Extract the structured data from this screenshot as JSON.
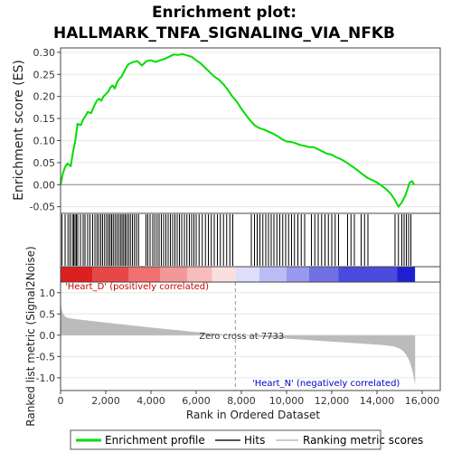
{
  "chart_data": {
    "type": "line",
    "title_line1": "Enrichment plot:",
    "title_line2": "HALLMARK_TNFA_SIGNALING_VIA_NFKB",
    "es_ylabel": "Enrichment score (ES)",
    "metric_ylabel": "Ranked list metric (Signal2Noise)",
    "xlabel": "Rank in Ordered Dataset",
    "xlim": [
      0,
      16800
    ],
    "x_ticks": [
      0,
      2000,
      4000,
      6000,
      8000,
      10000,
      12000,
      14000,
      16000
    ],
    "x_tick_labels": [
      "0",
      "2,000",
      "4,000",
      "6,000",
      "8,000",
      "10,000",
      "12,000",
      "14,000",
      "16,000"
    ],
    "es_ylim": [
      -0.065,
      0.31
    ],
    "es_yticks": [
      -0.05,
      0.0,
      0.05,
      0.1,
      0.15,
      0.2,
      0.25,
      0.3
    ],
    "es_ytick_labels": [
      "-0.05",
      "0.00",
      "0.05",
      "0.10",
      "0.15",
      "0.20",
      "0.25",
      "0.30"
    ],
    "metric_ylim": [
      -1.3,
      1.25
    ],
    "metric_yticks": [
      -1.0,
      -0.5,
      0.0,
      0.5,
      1.0
    ],
    "metric_ytick_labels": [
      "-1.0",
      "-0.5",
      "0.0",
      "0.5",
      "1.0"
    ],
    "n_genes": 15690,
    "zero_cross_rank": 7733,
    "zero_cross_label": "Zero cross at 7733",
    "pos_label": "'Heart_D' (positively correlated)",
    "neg_label": "'Heart_N' (negatively correlated)",
    "es_curve": {
      "x": [
        0,
        100,
        200,
        300,
        450,
        550,
        650,
        750,
        900,
        1000,
        1100,
        1200,
        1350,
        1500,
        1600,
        1700,
        1800,
        1900,
        2000,
        2100,
        2200,
        2300,
        2400,
        2500,
        2600,
        2700,
        2800,
        2900,
        3000,
        3200,
        3400,
        3600,
        3800,
        4000,
        4200,
        4400,
        4600,
        4800,
        5000,
        5200,
        5400,
        5600,
        5800,
        6000,
        6200,
        6400,
        6600,
        6800,
        7000,
        7200,
        7400,
        7600,
        7800,
        8000,
        8200,
        8400,
        8600,
        8800,
        9000,
        9200,
        9400,
        9600,
        9800,
        10000,
        10200,
        10400,
        10600,
        10800,
        11000,
        11200,
        11400,
        11600,
        11800,
        12000,
        12200,
        12400,
        12600,
        12800,
        13000,
        13200,
        13400,
        13600,
        13800,
        14000,
        14200,
        14400,
        14600,
        14800,
        14950,
        15100,
        15250,
        15350,
        15450,
        15550,
        15650
      ],
      "y": [
        0.0,
        0.025,
        0.04,
        0.048,
        0.042,
        0.075,
        0.1,
        0.138,
        0.135,
        0.148,
        0.155,
        0.165,
        0.162,
        0.18,
        0.19,
        0.195,
        0.19,
        0.2,
        0.205,
        0.21,
        0.22,
        0.225,
        0.218,
        0.232,
        0.24,
        0.245,
        0.255,
        0.265,
        0.273,
        0.278,
        0.28,
        0.27,
        0.28,
        0.282,
        0.278,
        0.282,
        0.285,
        0.29,
        0.295,
        0.294,
        0.296,
        0.293,
        0.29,
        0.282,
        0.275,
        0.265,
        0.255,
        0.245,
        0.238,
        0.228,
        0.215,
        0.2,
        0.188,
        0.172,
        0.158,
        0.145,
        0.134,
        0.128,
        0.125,
        0.12,
        0.116,
        0.11,
        0.103,
        0.098,
        0.097,
        0.094,
        0.09,
        0.088,
        0.085,
        0.085,
        0.08,
        0.075,
        0.07,
        0.068,
        0.062,
        0.058,
        0.052,
        0.045,
        0.038,
        0.03,
        0.022,
        0.015,
        0.01,
        0.005,
        -0.002,
        -0.01,
        -0.02,
        -0.035,
        -0.05,
        -0.04,
        -0.025,
        -0.01,
        0.005,
        0.008,
        0.0
      ]
    },
    "hits": [
      60,
      200,
      330,
      420,
      520,
      580,
      640,
      700,
      760,
      880,
      1000,
      1080,
      1200,
      1300,
      1420,
      1520,
      1610,
      1690,
      1780,
      1860,
      1950,
      2040,
      2120,
      2190,
      2260,
      2330,
      2410,
      2490,
      2570,
      2650,
      2720,
      2790,
      2860,
      2930,
      3010,
      3090,
      3180,
      3270,
      3360,
      3450,
      3780,
      3860,
      3960,
      4080,
      4170,
      4270,
      4360,
      4460,
      4560,
      4660,
      4760,
      4860,
      4960,
      5060,
      5160,
      5260,
      5360,
      5480,
      5590,
      5700,
      5800,
      5900,
      6000,
      6130,
      6270,
      6410,
      6540,
      6670,
      6800,
      6940,
      7070,
      7210,
      7350,
      7490,
      7620,
      8440,
      8580,
      8700,
      8820,
      8950,
      9080,
      9200,
      9320,
      9440,
      9570,
      9700,
      9830,
      9960,
      10090,
      10220,
      10350,
      10500,
      10650,
      10800,
      11100,
      11250,
      11400,
      11550,
      11700,
      11850,
      12000,
      12150,
      12300,
      12700,
      12850,
      13000,
      13300,
      13450,
      13600,
      14800,
      14950,
      15100,
      15200,
      15300,
      15400,
      15500
    ],
    "heat_segments": [
      {
        "start": 0,
        "end": 1400,
        "color": "#dd1f20"
      },
      {
        "start": 1400,
        "end": 3000,
        "color": "#e64848"
      },
      {
        "start": 3000,
        "end": 4400,
        "color": "#ee7070"
      },
      {
        "start": 4400,
        "end": 5600,
        "color": "#f39898"
      },
      {
        "start": 5600,
        "end": 6700,
        "color": "#f7bcbc"
      },
      {
        "start": 6700,
        "end": 7733,
        "color": "#fbdede"
      },
      {
        "start": 7733,
        "end": 8800,
        "color": "#dedefb"
      },
      {
        "start": 8800,
        "end": 10000,
        "color": "#bcbcf5"
      },
      {
        "start": 10000,
        "end": 11000,
        "color": "#9898ef"
      },
      {
        "start": 11000,
        "end": 12300,
        "color": "#7070e6"
      },
      {
        "start": 12300,
        "end": 14900,
        "color": "#4a4ade"
      },
      {
        "start": 14900,
        "end": 15690,
        "color": "#1f1fd2"
      }
    ],
    "legend": [
      "Enrichment profile",
      "Hits",
      "Ranking metric scores"
    ],
    "colors": {
      "es_line": "#00dd00",
      "hits": "#000000",
      "metric_fill": "#bbbbbb",
      "pos_text": "#cc0000",
      "neg_text": "#0000cc",
      "zero_cross_line": "#999999"
    }
  }
}
